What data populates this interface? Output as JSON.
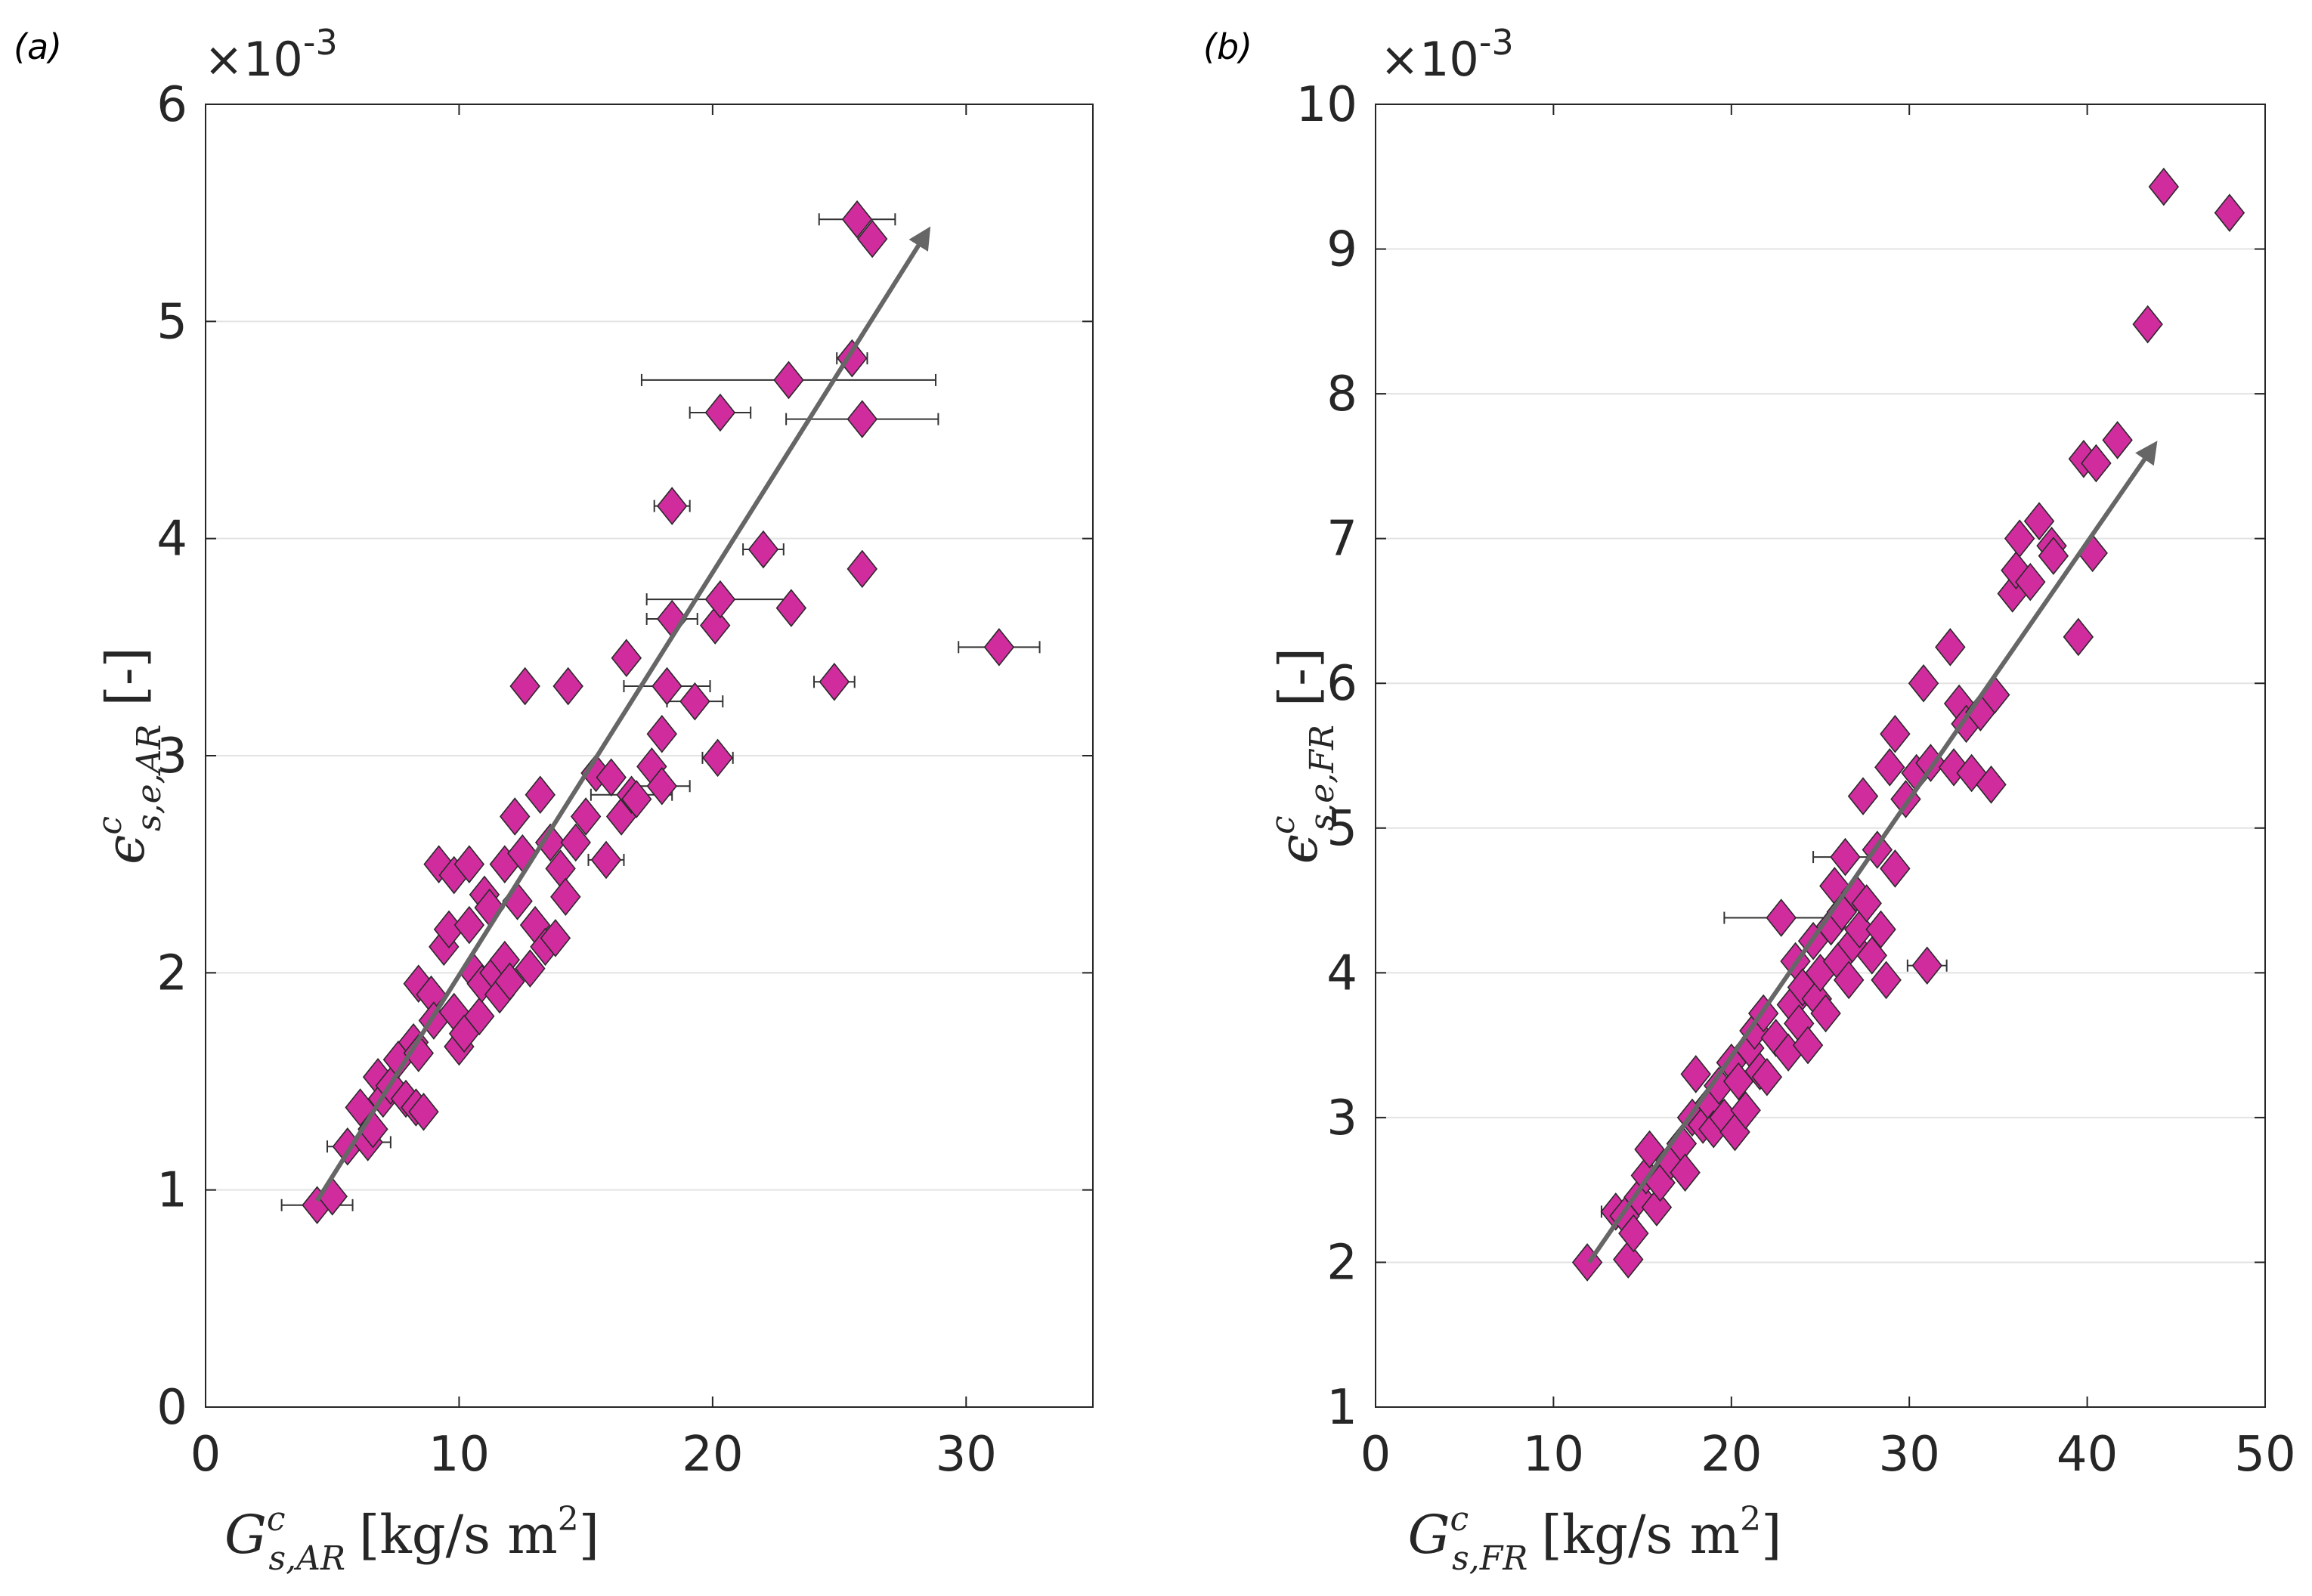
{
  "chart_data": [
    {
      "type": "scatter",
      "panel_label": "(a)",
      "exponent_label": "×10",
      "exponent_power": "-3",
      "xlabel_main": "G",
      "xlabel_sup": "c",
      "xlabel_sub": "s,AR",
      "xlabel_units": "[kg/s m",
      "xlabel_units_sup": "2",
      "xlabel_units_end": "]",
      "ylabel_main": "ϵ",
      "ylabel_sup": "c",
      "ylabel_sub": "s,e,AR",
      "ylabel_units": "[-]",
      "xlim": [
        0,
        35
      ],
      "ylim": [
        0,
        6
      ],
      "xticks": [
        0,
        10,
        20,
        30
      ],
      "xtick_labels": [
        "0",
        "10",
        "20",
        "30"
      ],
      "yticks": [
        0,
        1,
        2,
        3,
        4,
        5,
        6
      ],
      "ytick_labels": [
        "0",
        "1",
        "2",
        "3",
        "4",
        "5",
        "6"
      ],
      "grid": "horizontal",
      "marker_color": "#d02c9e",
      "arrow": {
        "from": [
          4.4,
          0.95
        ],
        "to": [
          28.5,
          5.42
        ]
      },
      "points": [
        [
          4.4,
          0.93,
          1.4
        ],
        [
          5.0,
          0.97,
          0
        ],
        [
          5.6,
          1.2,
          0.8
        ],
        [
          6.1,
          1.38,
          0
        ],
        [
          6.4,
          1.22,
          0.9
        ],
        [
          6.6,
          1.28,
          0
        ],
        [
          6.8,
          1.52,
          0
        ],
        [
          7.0,
          1.42,
          0
        ],
        [
          7.3,
          1.48,
          0
        ],
        [
          7.6,
          1.6,
          0
        ],
        [
          7.9,
          1.42,
          0
        ],
        [
          8.2,
          1.68,
          0
        ],
        [
          8.3,
          1.38,
          0
        ],
        [
          8.6,
          1.36,
          0
        ],
        [
          8.4,
          1.63,
          0
        ],
        [
          8.4,
          1.95,
          0
        ],
        [
          8.9,
          1.9,
          0
        ],
        [
          9.0,
          1.78,
          0
        ],
        [
          9.2,
          2.5,
          0
        ],
        [
          9.4,
          2.12,
          0
        ],
        [
          9.6,
          2.2,
          0
        ],
        [
          9.8,
          1.82,
          0
        ],
        [
          9.8,
          2.45,
          0
        ],
        [
          10.0,
          1.66,
          0
        ],
        [
          10.2,
          1.72,
          0
        ],
        [
          10.4,
          2.5,
          0
        ],
        [
          10.4,
          2.22,
          0
        ],
        [
          10.6,
          2.0,
          0
        ],
        [
          10.8,
          1.8,
          0
        ],
        [
          10.9,
          1.95,
          0
        ],
        [
          11.0,
          2.36,
          0
        ],
        [
          11.2,
          2.3,
          0
        ],
        [
          11.4,
          2.0,
          0
        ],
        [
          11.6,
          1.9,
          0
        ],
        [
          11.8,
          2.5,
          0
        ],
        [
          11.8,
          2.06,
          0
        ],
        [
          12.0,
          1.96,
          0
        ],
        [
          12.2,
          2.72,
          0
        ],
        [
          12.3,
          2.33,
          0
        ],
        [
          12.5,
          2.55,
          0
        ],
        [
          12.6,
          3.32,
          0
        ],
        [
          12.8,
          2.02,
          0
        ],
        [
          13.0,
          2.22,
          0
        ],
        [
          13.2,
          2.82,
          0
        ],
        [
          13.4,
          2.12,
          0
        ],
        [
          13.6,
          2.6,
          0
        ],
        [
          13.8,
          2.16,
          0
        ],
        [
          14.0,
          2.48,
          0
        ],
        [
          14.2,
          2.35,
          0
        ],
        [
          14.3,
          3.32,
          0
        ],
        [
          14.6,
          2.6,
          0
        ],
        [
          15.0,
          2.72,
          0
        ],
        [
          15.4,
          2.92,
          0
        ],
        [
          15.8,
          2.52,
          0.7
        ],
        [
          16.0,
          2.9,
          0
        ],
        [
          16.4,
          2.72,
          0
        ],
        [
          16.6,
          3.45,
          0
        ],
        [
          16.8,
          2.82,
          1.6
        ],
        [
          17.0,
          2.8,
          0
        ],
        [
          17.6,
          2.95,
          0
        ],
        [
          18.0,
          3.1,
          0
        ],
        [
          18.0,
          2.86,
          1.1
        ],
        [
          18.2,
          3.32,
          1.7
        ],
        [
          18.4,
          4.15,
          0.7
        ],
        [
          18.4,
          3.63,
          1.0
        ],
        [
          19.3,
          3.25,
          1.1
        ],
        [
          20.1,
          3.6,
          0
        ],
        [
          20.3,
          3.72,
          2.9
        ],
        [
          20.2,
          2.99,
          0.6
        ],
        [
          20.3,
          4.58,
          1.2
        ],
        [
          22.0,
          3.95,
          0.8
        ],
        [
          23.1,
          3.68,
          0
        ],
        [
          23.0,
          4.73,
          5.8
        ],
        [
          24.8,
          3.34,
          0.8
        ],
        [
          25.5,
          4.83,
          0.6
        ],
        [
          25.7,
          5.47,
          1.5
        ],
        [
          25.9,
          4.55,
          3.0
        ],
        [
          25.9,
          3.86,
          0
        ],
        [
          26.3,
          5.38,
          0
        ],
        [
          31.3,
          3.5,
          1.6
        ]
      ]
    },
    {
      "type": "scatter",
      "panel_label": "(b)",
      "exponent_label": "×10",
      "exponent_power": "-3",
      "xlabel_main": "G",
      "xlabel_sup": "c",
      "xlabel_sub": "s,FR",
      "xlabel_units": "[kg/s m",
      "xlabel_units_sup": "2",
      "xlabel_units_end": "]",
      "ylabel_main": "ϵ",
      "ylabel_sup": "c",
      "ylabel_sub": "s,e,FR",
      "ylabel_units": "[-]",
      "xlim": [
        0,
        50
      ],
      "ylim": [
        1,
        10
      ],
      "xticks": [
        0,
        10,
        20,
        30,
        40,
        50
      ],
      "xtick_labels": [
        "0",
        "10",
        "20",
        "30",
        "40",
        "50"
      ],
      "yticks": [
        1,
        2,
        3,
        4,
        5,
        6,
        7,
        8,
        9,
        10
      ],
      "ytick_labels": [
        "1",
        "2",
        "3",
        "4",
        "5",
        "6",
        "7",
        "8",
        "9",
        "10"
      ],
      "grid": "horizontal",
      "marker_color": "#d02c9e",
      "arrow": {
        "from": [
          12.0,
          2.0
        ],
        "to": [
          43.8,
          7.65
        ]
      },
      "points": [
        [
          11.9,
          2.0,
          0
        ],
        [
          13.5,
          2.35,
          0.8
        ],
        [
          14.0,
          2.32,
          0
        ],
        [
          14.2,
          2.02,
          0
        ],
        [
          14.5,
          2.2,
          0
        ],
        [
          14.8,
          2.45,
          0
        ],
        [
          15.2,
          2.6,
          0
        ],
        [
          15.4,
          2.78,
          0
        ],
        [
          15.8,
          2.38,
          0
        ],
        [
          16.0,
          2.55,
          0
        ],
        [
          16.6,
          2.7,
          0
        ],
        [
          17.2,
          2.82,
          0
        ],
        [
          17.4,
          2.62,
          0
        ],
        [
          17.8,
          3.0,
          0
        ],
        [
          18.0,
          3.3,
          0
        ],
        [
          18.4,
          2.95,
          0
        ],
        [
          18.8,
          3.1,
          0
        ],
        [
          19.0,
          2.92,
          0
        ],
        [
          19.3,
          3.22,
          0
        ],
        [
          19.6,
          3.0,
          0
        ],
        [
          20.0,
          3.38,
          0
        ],
        [
          20.2,
          2.9,
          0
        ],
        [
          20.4,
          3.25,
          0
        ],
        [
          20.8,
          3.05,
          0
        ],
        [
          21.0,
          3.48,
          0
        ],
        [
          21.3,
          3.6,
          0
        ],
        [
          21.6,
          3.32,
          0
        ],
        [
          21.8,
          3.72,
          0
        ],
        [
          22.0,
          3.28,
          0
        ],
        [
          22.5,
          3.55,
          0
        ],
        [
          22.8,
          4.38,
          3.2
        ],
        [
          23.2,
          3.45,
          0
        ],
        [
          23.4,
          3.78,
          0
        ],
        [
          23.6,
          4.08,
          0
        ],
        [
          23.8,
          3.65,
          0
        ],
        [
          24.0,
          3.9,
          0
        ],
        [
          24.3,
          3.5,
          0
        ],
        [
          24.6,
          4.22,
          0
        ],
        [
          24.8,
          3.82,
          0
        ],
        [
          25.0,
          4.0,
          0
        ],
        [
          25.3,
          3.72,
          0
        ],
        [
          25.6,
          4.32,
          0
        ],
        [
          25.8,
          4.6,
          0
        ],
        [
          26.0,
          4.08,
          0
        ],
        [
          26.2,
          4.42,
          0
        ],
        [
          26.4,
          4.8,
          1.8
        ],
        [
          26.6,
          3.95,
          0
        ],
        [
          26.8,
          4.2,
          0
        ],
        [
          27.0,
          4.55,
          0
        ],
        [
          27.2,
          4.3,
          0
        ],
        [
          27.4,
          5.22,
          0
        ],
        [
          27.6,
          4.48,
          0
        ],
        [
          27.9,
          4.12,
          0
        ],
        [
          28.2,
          4.85,
          0
        ],
        [
          28.4,
          4.3,
          0
        ],
        [
          28.7,
          3.95,
          0
        ],
        [
          28.9,
          5.42,
          0
        ],
        [
          29.2,
          4.72,
          0
        ],
        [
          29.2,
          5.65,
          0
        ],
        [
          29.8,
          5.2,
          0
        ],
        [
          30.4,
          5.38,
          0
        ],
        [
          30.8,
          6.0,
          0
        ],
        [
          31.0,
          4.05,
          1.1
        ],
        [
          31.2,
          5.45,
          0
        ],
        [
          32.3,
          6.25,
          0
        ],
        [
          32.5,
          5.42,
          0
        ],
        [
          32.8,
          5.86,
          0
        ],
        [
          33.2,
          5.72,
          0
        ],
        [
          33.5,
          5.38,
          0
        ],
        [
          34.0,
          5.8,
          0
        ],
        [
          34.6,
          5.3,
          0
        ],
        [
          34.8,
          5.92,
          0
        ],
        [
          35.8,
          6.62,
          0
        ],
        [
          36.0,
          6.78,
          0
        ],
        [
          36.2,
          7.0,
          0
        ],
        [
          36.8,
          6.7,
          0
        ],
        [
          37.3,
          7.12,
          0
        ],
        [
          38.0,
          6.95,
          0
        ],
        [
          38.1,
          6.88,
          0
        ],
        [
          39.5,
          6.32,
          0
        ],
        [
          39.8,
          7.55,
          0
        ],
        [
          40.3,
          6.9,
          0
        ],
        [
          40.5,
          7.52,
          0
        ],
        [
          41.7,
          7.68,
          0
        ],
        [
          43.4,
          8.48,
          0
        ],
        [
          44.3,
          9.43,
          0
        ],
        [
          48.0,
          9.25,
          0
        ]
      ]
    }
  ]
}
